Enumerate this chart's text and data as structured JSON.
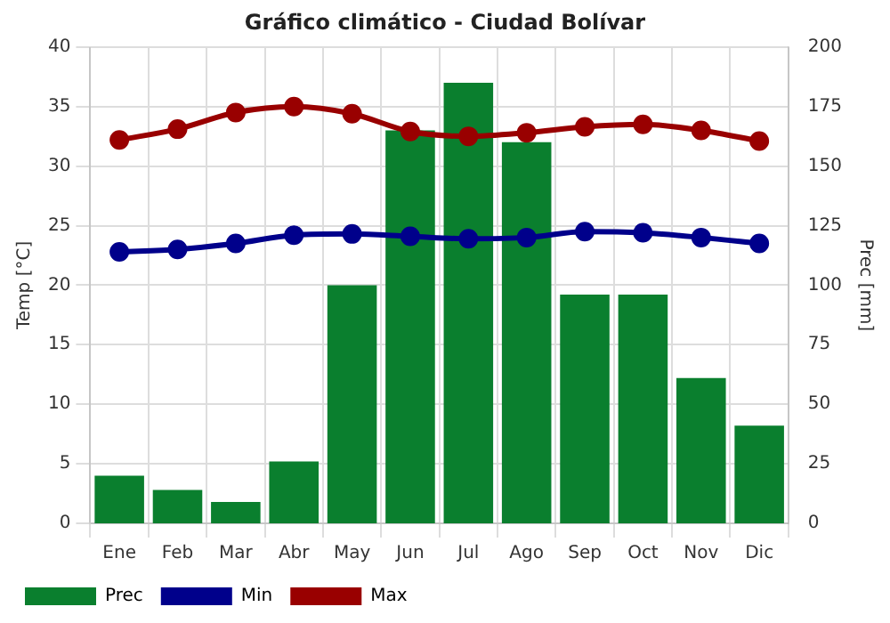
{
  "chart_data": {
    "type": "bar",
    "title": "Gráfico climático - Ciudad Bolívar",
    "ylabel": "Temp [°C]",
    "y2label": "Prec [mm]",
    "categories": [
      "Ene",
      "Feb",
      "Mar",
      "Abr",
      "May",
      "Jun",
      "Jul",
      "Ago",
      "Sep",
      "Oct",
      "Nov",
      "Dic"
    ],
    "series": [
      {
        "name": "Prec",
        "axis": "y2",
        "color": "#0a7f2e",
        "values": [
          20,
          14,
          9,
          26,
          100,
          165,
          185,
          160,
          96,
          96,
          61,
          41
        ]
      },
      {
        "name": "Min",
        "type": "line",
        "color": "#00008b",
        "values": [
          22.8,
          23.0,
          23.5,
          24.2,
          24.3,
          24.1,
          23.9,
          24.0,
          24.5,
          24.4,
          24.0,
          23.5
        ]
      },
      {
        "name": "Max",
        "type": "line",
        "color": "#990000",
        "values": [
          32.2,
          33.1,
          34.5,
          35.0,
          34.4,
          32.9,
          32.5,
          32.8,
          33.3,
          33.5,
          33.0,
          32.1
        ]
      }
    ],
    "ylim": [
      0,
      40
    ],
    "yticks": [
      0,
      5,
      10,
      15,
      20,
      25,
      30,
      35,
      40
    ],
    "y2lim": [
      0,
      200
    ],
    "y2ticks": [
      0,
      25,
      50,
      75,
      100,
      125,
      150,
      175,
      200
    ],
    "grid": true,
    "legend": "bottom left",
    "marker": "circle",
    "line_style": "solid"
  }
}
